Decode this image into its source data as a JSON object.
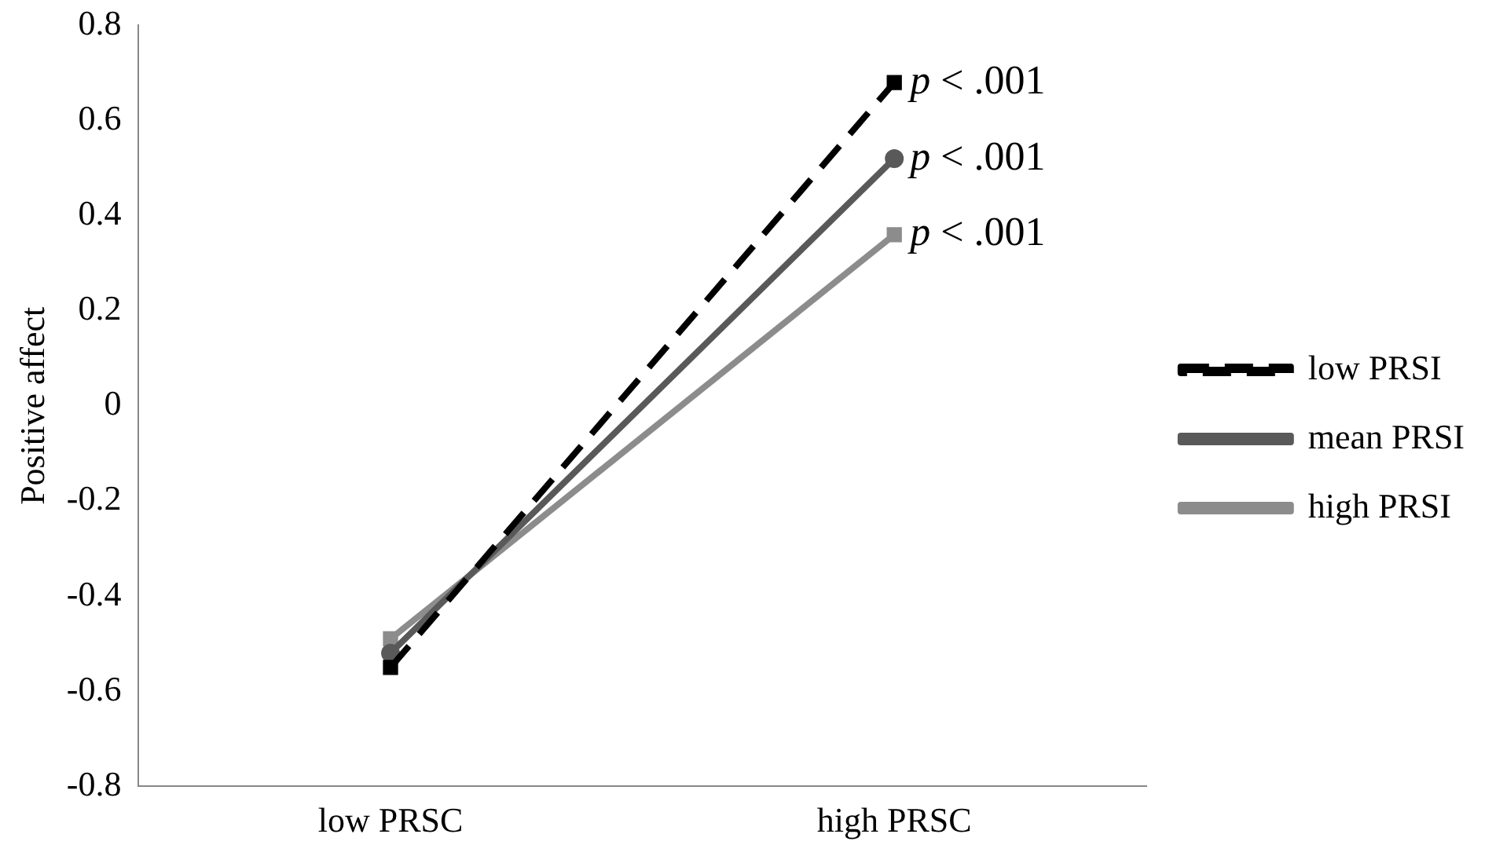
{
  "chart_data": {
    "type": "line",
    "ylabel": "Positive affect",
    "categories": [
      "low PRSC",
      "high PRSC"
    ],
    "series": [
      {
        "name": "low PRSI",
        "color": "#000000",
        "values": [
          -0.55,
          0.68
        ],
        "line_style": "dashed",
        "marker": "square"
      },
      {
        "name": "mean PRSI",
        "color": "#595959",
        "values": [
          -0.52,
          0.52
        ],
        "line_style": "solid",
        "marker": "circle"
      },
      {
        "name": "high PRSI",
        "color": "#8c8c8c",
        "values": [
          -0.49,
          0.36
        ],
        "line_style": "solid",
        "marker": "square"
      }
    ],
    "ylim": [
      -0.8,
      0.8
    ],
    "yticks": [
      -0.8,
      -0.6,
      -0.4,
      -0.2,
      0,
      0.2,
      0.4,
      0.6,
      0.8
    ],
    "grid": false,
    "legend": "right",
    "annotations": [
      {
        "text": "p < .001",
        "x": "high PRSC",
        "y": 0.68
      },
      {
        "text": "p < .001",
        "x": "high PRSC",
        "y": 0.52
      },
      {
        "text": "p < .001",
        "x": "high PRSC",
        "y": 0.36
      }
    ]
  }
}
